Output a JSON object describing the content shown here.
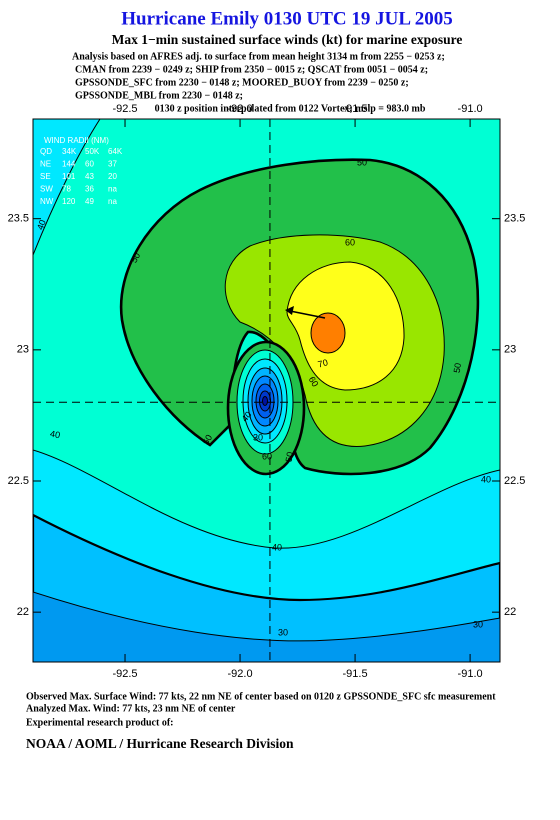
{
  "title": "Hurricane Emily 0130 UTC 19 JUL 2005",
  "subtitle": "Max 1−min sustained surface winds (kt) for marine exposure",
  "analysis_notes": [
    "Analysis based on  AFRES adj. to surface from mean height 3134 m from 2255 − 0253 z;",
    "CMAN from 2239 − 0249 z;  SHIP from 2350 − 0015 z;  QSCAT from 0051 − 0054 z;",
    "GPSSONDE_SFC from 2230 − 0148 z;  MOORED_BUOY from 2239 − 0250 z;",
    "GPSSONDE_MBL from 2230 − 0148 z;"
  ],
  "position_note": "0130 z position interpolated from 0122 Vortex; mslp = 983.0 mb",
  "wind_radii": {
    "title": "WIND RADII (NM)",
    "rows": [
      [
        "QD",
        "34K",
        "50K",
        "64K"
      ],
      [
        "NE",
        "144",
        "60",
        "37"
      ],
      [
        "SE",
        "101",
        "43",
        "20"
      ],
      [
        "SW",
        "78",
        "36",
        "na"
      ],
      [
        "NW",
        "120",
        "49",
        "na"
      ]
    ]
  },
  "chart_data": {
    "type": "contour",
    "xlim": [
      -92.9,
      -90.87
    ],
    "ylim": [
      21.81,
      23.88
    ],
    "xticks": [
      {
        "value": -92.5,
        "label": "-92.5"
      },
      {
        "value": -92.0,
        "label": "-92.0"
      },
      {
        "value": -91.5,
        "label": "-91.5"
      },
      {
        "value": -91.0,
        "label": "-91.0"
      }
    ],
    "yticks": [
      22.0,
      22.5,
      23.0,
      23.5
    ],
    "center": {
      "lon": -91.87,
      "lat": 22.8
    },
    "contour_labels": [
      50,
      50,
      60,
      50,
      70,
      60,
      50,
      50,
      40,
      40,
      40,
      40,
      30,
      30,
      60,
      30,
      40
    ]
  },
  "footer": {
    "observed": "Observed Max. Surface Wind: 77 kts, 22 nm NE of center based on 0120 z GPSSONDE_SFC sfc measurement",
    "analyzed": "Analyzed Max. Wind: 77 kts, 23 nm NE of center",
    "product": "Experimental research product of:",
    "organization": "NOAA / AOML / Hurricane Research Division"
  }
}
